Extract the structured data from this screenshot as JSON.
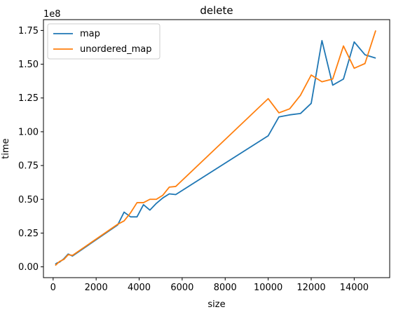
{
  "chart_data": {
    "type": "line",
    "title": "delete",
    "xlabel": "size",
    "ylabel": "time",
    "y_offset_text": "1e8",
    "xlim": [
      -450,
      15650
    ],
    "ylim": [
      -0.08,
      1.83
    ],
    "xticks": [
      0,
      2000,
      4000,
      6000,
      8000,
      10000,
      12000,
      14000
    ],
    "xtick_labels": [
      "0",
      "2000",
      "4000",
      "6000",
      "8000",
      "10000",
      "12000",
      "14000"
    ],
    "yticks": [
      0.0,
      0.25,
      0.5,
      0.75,
      1.0,
      1.25,
      1.5,
      1.75
    ],
    "ytick_labels": [
      "0.00",
      "0.25",
      "0.50",
      "0.75",
      "1.00",
      "1.25",
      "1.50",
      "1.75"
    ],
    "legend_position": "top-left",
    "grid": false,
    "series": [
      {
        "name": "map",
        "color": "#1f77b4",
        "x": [
          100,
          200,
          300,
          500,
          700,
          900,
          3000,
          3300,
          3600,
          3900,
          4200,
          4500,
          4800,
          5100,
          5400,
          5700,
          10000,
          10500,
          11000,
          11500,
          12000,
          12500,
          13000,
          13500,
          14000,
          14500,
          15000
        ],
        "y": [
          0.02,
          0.03,
          0.035,
          0.06,
          0.095,
          0.08,
          0.31,
          0.405,
          0.37,
          0.37,
          0.46,
          0.42,
          0.47,
          0.51,
          0.54,
          0.535,
          0.97,
          1.11,
          1.125,
          1.135,
          1.21,
          1.675,
          1.345,
          1.39,
          1.665,
          1.57,
          1.545
        ]
      },
      {
        "name": "unordered_map",
        "color": "#ff7f0e",
        "x": [
          100,
          300,
          500,
          700,
          900,
          3000,
          3300,
          3600,
          3900,
          4200,
          4500,
          4800,
          5100,
          5400,
          5700,
          10000,
          10500,
          11000,
          11500,
          12000,
          12500,
          13000,
          13500,
          14000,
          14500,
          15000
        ],
        "y": [
          0.01,
          0.04,
          0.055,
          0.09,
          0.085,
          0.315,
          0.34,
          0.4,
          0.475,
          0.475,
          0.5,
          0.5,
          0.53,
          0.59,
          0.595,
          1.245,
          1.14,
          1.17,
          1.27,
          1.42,
          1.37,
          1.39,
          1.635,
          1.47,
          1.505,
          1.75
        ]
      }
    ]
  }
}
